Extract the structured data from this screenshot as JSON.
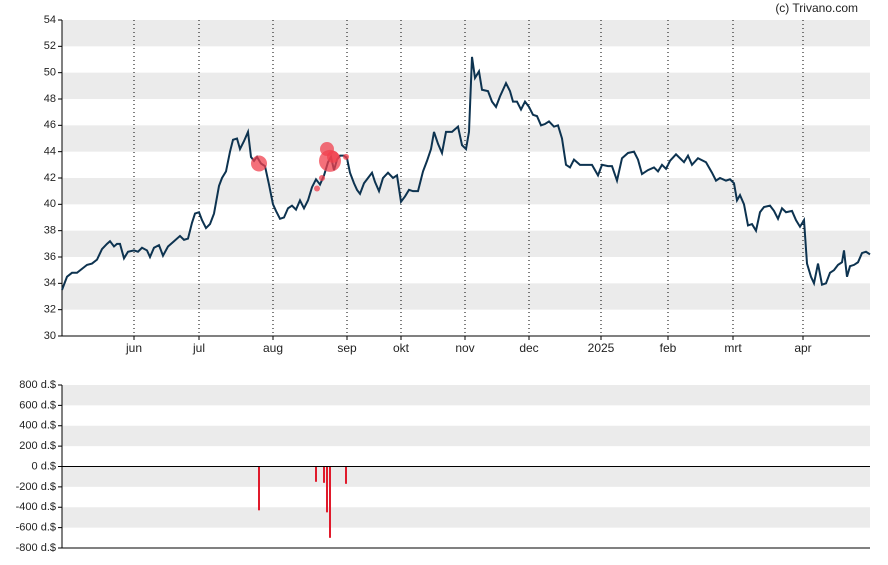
{
  "chart_data": [
    {
      "type": "line",
      "source": "(c) Trivano.com",
      "xlim": [
        0,
        808
      ],
      "xticks": [
        {
          "value": 72,
          "label": "jun"
        },
        {
          "value": 137,
          "label": "jul"
        },
        {
          "value": 211,
          "label": "aug"
        },
        {
          "value": 285,
          "label": "sep"
        },
        {
          "value": 339,
          "label": "okt"
        },
        {
          "value": 403,
          "label": "nov"
        },
        {
          "value": 467,
          "label": "dec"
        },
        {
          "value": 539,
          "label": "2025"
        },
        {
          "value": 606,
          "label": "feb"
        },
        {
          "value": 671,
          "label": "mrt"
        },
        {
          "value": 741,
          "label": "apr"
        }
      ],
      "ylim": [
        30,
        54
      ],
      "yticks": [
        30,
        32,
        34,
        36,
        38,
        40,
        42,
        44,
        46,
        48,
        50,
        52,
        54
      ],
      "grid": true,
      "color": "#0d3350",
      "x": [
        0,
        5,
        10,
        15,
        25,
        30,
        35,
        40,
        45,
        48,
        52,
        55,
        58,
        62,
        66,
        72,
        76,
        80,
        85,
        88,
        92,
        97,
        101,
        106,
        112,
        118,
        122,
        126,
        130,
        133,
        137,
        140,
        144,
        148,
        152,
        157,
        160,
        164,
        168,
        171,
        175,
        178,
        182,
        186,
        189,
        192,
        195,
        199,
        203,
        207,
        211,
        214,
        218,
        222,
        226,
        230,
        234,
        238,
        242,
        246,
        250,
        254,
        258,
        262,
        266,
        269,
        272,
        275,
        278,
        282,
        285,
        288,
        292,
        295,
        298,
        302,
        306,
        310,
        313,
        317,
        321,
        326,
        331,
        335,
        339,
        343,
        347,
        351,
        356,
        361,
        365,
        369,
        372,
        376,
        380,
        384,
        390,
        396,
        400,
        404,
        407,
        410,
        413,
        417,
        420,
        426,
        430,
        434,
        438,
        444,
        448,
        451,
        455,
        459,
        463,
        467,
        471,
        475,
        479,
        483,
        487,
        492,
        496,
        500,
        504,
        508,
        512,
        518,
        524,
        530,
        536,
        540,
        546,
        550,
        555,
        560,
        566,
        572,
        576,
        580,
        586,
        592,
        596,
        600,
        604,
        608,
        614,
        618,
        622,
        626,
        630,
        636,
        644,
        650,
        654,
        658,
        664,
        668,
        672,
        675,
        678,
        682,
        686,
        690,
        694,
        698,
        702,
        708,
        712,
        716,
        720,
        724,
        730,
        734,
        738,
        742,
        745,
        749,
        752,
        756,
        760,
        764,
        768,
        772,
        776,
        780,
        782,
        785,
        788,
        792,
        796,
        800,
        804,
        808
      ],
      "values": [
        33.5,
        34.5,
        34.8,
        34.8,
        35.4,
        35.5,
        35.8,
        36.6,
        37.0,
        37.2,
        36.8,
        37.0,
        37.0,
        35.9,
        36.4,
        36.5,
        36.4,
        36.7,
        36.5,
        36.0,
        36.7,
        36.9,
        36.1,
        36.8,
        37.2,
        37.6,
        37.3,
        37.4,
        38.6,
        39.3,
        39.4,
        38.8,
        38.2,
        38.5,
        39.3,
        41.4,
        42.0,
        42.5,
        44.0,
        44.9,
        45.0,
        44.2,
        44.8,
        45.5,
        43.6,
        43.3,
        43.6,
        43.1,
        42.9,
        41.5,
        40.0,
        39.5,
        38.9,
        39.0,
        39.7,
        39.9,
        39.6,
        40.3,
        39.7,
        40.3,
        41.3,
        41.9,
        41.5,
        42.2,
        43.2,
        43.6,
        42.6,
        43.4,
        43.7,
        43.7,
        43.5,
        42.4,
        41.6,
        41.1,
        40.8,
        41.6,
        42.0,
        42.4,
        41.7,
        41.0,
        42.0,
        42.4,
        42.0,
        42.2,
        40.2,
        40.6,
        41.1,
        41.0,
        41.0,
        42.5,
        43.3,
        44.2,
        45.5,
        44.6,
        43.9,
        45.5,
        45.5,
        45.9,
        44.5,
        44.2,
        45.5,
        51.2,
        49.6,
        50.1,
        48.7,
        48.6,
        47.8,
        47.4,
        48.2,
        49.2,
        48.6,
        47.8,
        47.8,
        47.2,
        47.8,
        47.4,
        46.8,
        46.7,
        46.0,
        46.1,
        46.3,
        45.9,
        46.0,
        45.0,
        43.0,
        42.8,
        43.4,
        43.0,
        43.0,
        43.0,
        42.2,
        43.0,
        42.9,
        42.9,
        41.8,
        43.5,
        43.9,
        44.0,
        43.4,
        42.3,
        42.6,
        42.8,
        42.5,
        43.0,
        42.7,
        43.3,
        43.8,
        43.5,
        43.2,
        43.7,
        43.0,
        43.5,
        43.2,
        42.4,
        41.8,
        42.0,
        41.8,
        41.9,
        41.6,
        40.3,
        40.7,
        40.0,
        38.4,
        38.5,
        38.0,
        39.4,
        39.8,
        39.9,
        39.5,
        38.9,
        39.7,
        39.4,
        39.5,
        38.8,
        38.3,
        38.8,
        35.5,
        34.5,
        34.0,
        35.5,
        33.9,
        34.0,
        34.8,
        35.0,
        35.4,
        35.6,
        36.5,
        34.5,
        35.3,
        35.4,
        35.6,
        36.3,
        36.4,
        36.2
      ],
      "markers": {
        "color": "#f0404e",
        "x": [
          197,
          255,
          260,
          265,
          268,
          271,
          284
        ],
        "values": [
          43.1,
          41.2,
          42.0,
          44.2,
          43.3,
          43.6,
          43.6
        ],
        "sizes": [
          8,
          3,
          3,
          7,
          11,
          6,
          3
        ]
      }
    },
    {
      "type": "bar",
      "xlim": [
        0,
        808
      ],
      "ylim": [
        -800,
        800
      ],
      "yticks": [
        {
          "value": 800,
          "label": "800 d.$"
        },
        {
          "value": 600,
          "label": "600 d.$"
        },
        {
          "value": 400,
          "label": "400 d.$"
        },
        {
          "value": 200,
          "label": "200 d.$"
        },
        {
          "value": 0,
          "label": "0 d.$"
        },
        {
          "value": -200,
          "label": "-200 d.$"
        },
        {
          "value": -400,
          "label": "-400 d.$"
        },
        {
          "value": -600,
          "label": "-600 d.$"
        },
        {
          "value": -800,
          "label": "-800 d.$"
        }
      ],
      "grid": true,
      "color": "#e01a2b",
      "x": [
        197,
        254,
        262,
        265,
        268,
        284
      ],
      "values": [
        -430,
        -150,
        -160,
        -450,
        -700,
        -170
      ]
    }
  ]
}
